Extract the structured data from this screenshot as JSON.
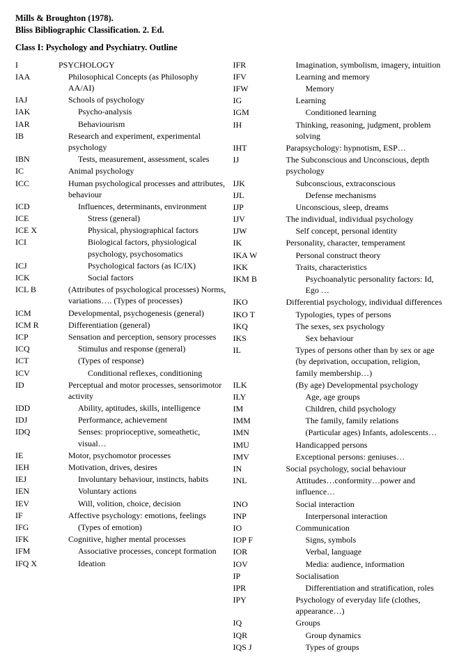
{
  "header": {
    "line1": "Mills & Broughton (1978).",
    "line2": "Bliss Bibliographic Classification. 2. Ed.",
    "class_title": "Class I: Psychology and Psychiatry. Outline"
  },
  "left": [
    {
      "code": "I",
      "desc": "PSYCHOLOGY",
      "indent": 0
    },
    {
      "code": "IAA",
      "desc": "Philosophical Concepts (as Philosophy AA/AI)",
      "indent": 1
    },
    {
      "code": "IAJ",
      "desc": "Schools of psychology",
      "indent": 1
    },
    {
      "code": "IAK",
      "desc": "Psycho-analysis",
      "indent": 2
    },
    {
      "code": "IAR",
      "desc": "Behaviourism",
      "indent": 2
    },
    {
      "code": "IB",
      "desc": "Research and experiment, experimental psychology",
      "indent": 1
    },
    {
      "code": "IBN",
      "desc": "Tests, measurement, assessment, scales",
      "indent": 2
    },
    {
      "code": "IC",
      "desc": "Animal psychology",
      "indent": 1
    },
    {
      "code": "ICC",
      "desc": "Human psychological processes and attributes, behaviour",
      "indent": 1
    },
    {
      "code": "ICD",
      "desc": "Influences, determinants, environment",
      "indent": 2
    },
    {
      "code": "ICE",
      "desc": "Stress (general)",
      "indent": 3
    },
    {
      "code": "ICE X",
      "desc": "Physical, physiographical factors",
      "indent": 3
    },
    {
      "code": "ICI",
      "desc": "Biological factors, physiological psychology, psychosomatics",
      "indent": 3
    },
    {
      "code": "ICJ",
      "desc": "Psychological factors (as IC/IX)",
      "indent": 3
    },
    {
      "code": "ICK",
      "desc": "Social factors",
      "indent": 3
    },
    {
      "code": "ICL B",
      "desc": "(Attributes of psychological processes) Norms, variations…. (Types of processes)",
      "indent": 1
    },
    {
      "code": "ICM",
      "desc": "Developmental, psychogenesis (general)",
      "indent": 1
    },
    {
      "code": "ICM R",
      "desc": "Differentiation (general)",
      "indent": 1
    },
    {
      "code": "ICP",
      "desc": "Sensation and perception, sensory processes",
      "indent": 1
    },
    {
      "code": "ICQ",
      "desc": "Stimulus and response (general)",
      "indent": 2
    },
    {
      "code": "ICT",
      "desc": "(Types of response)",
      "indent": 2
    },
    {
      "code": "ICV",
      "desc": "Conditional reflexes, conditioning",
      "indent": 3
    },
    {
      "code": "ID",
      "desc": "Perceptual and motor processes, sensorimotor activity",
      "indent": 1
    },
    {
      "code": "IDD",
      "desc": "Ability, aptitudes, skills, intelligence",
      "indent": 2
    },
    {
      "code": "IDJ",
      "desc": "Performance, achievement",
      "indent": 2
    },
    {
      "code": "IDQ",
      "desc": "Senses: proprioceptive, someathetic, visual…",
      "indent": 2
    },
    {
      "code": "IE",
      "desc": "Motor, psychomotor processes",
      "indent": 1
    },
    {
      "code": "IEH",
      "desc": "Motivation, drives, desires",
      "indent": 1
    },
    {
      "code": "IEJ",
      "desc": "Involuntary behaviour, instincts, habits",
      "indent": 2
    },
    {
      "code": "IEN",
      "desc": "Voluntary actions",
      "indent": 2
    },
    {
      "code": "IEV",
      "desc": "Will, volition, choice, decision",
      "indent": 2
    },
    {
      "code": "IF",
      "desc": "Affective psychology: emotions, feelings",
      "indent": 1
    },
    {
      "code": "IFG",
      "desc": "(Types of emotion)",
      "indent": 2
    },
    {
      "code": "IFK",
      "desc": "Cognitive, higher mental processes",
      "indent": 1
    },
    {
      "code": "IFM",
      "desc": "Associative processes, concept formation",
      "indent": 2
    },
    {
      "code": "IFQ X",
      "desc": "Ideation",
      "indent": 2
    }
  ],
  "right": [
    {
      "code": "IFR",
      "desc": "Imagination, symbolism, imagery, intuition",
      "indent": 2
    },
    {
      "code": "IFV",
      "desc": "Learning and memory",
      "indent": 2
    },
    {
      "code": "IFW",
      "desc": "Memory",
      "indent": 3
    },
    {
      "code": "IG",
      "desc": "Learning",
      "indent": 2
    },
    {
      "code": "IGM",
      "desc": "Conditioned learning",
      "indent": 3
    },
    {
      "code": "IH",
      "desc": "Thinking, reasoning, judgment, problem solving",
      "indent": 2
    },
    {
      "code": "IHT",
      "desc": "Parapsychology: hypnotism, ESP…",
      "indent": 1
    },
    {
      "code": "IJ",
      "desc": "The Subconscious and Unconscious, depth psychology",
      "indent": 1
    },
    {
      "code": "IJK",
      "desc": "Subconscious, extraconscious",
      "indent": 2
    },
    {
      "code": "IJL",
      "desc": "Defense mechanisms",
      "indent": 3
    },
    {
      "code": "IJP",
      "desc": "Unconscious, sleep, dreams",
      "indent": 2
    },
    {
      "code": "IJV",
      "desc": "The individual, individual psychology",
      "indent": 1
    },
    {
      "code": "IJW",
      "desc": "Self concept, personal identity",
      "indent": 2
    },
    {
      "code": "IK",
      "desc": "Personality, character, temperament",
      "indent": 1
    },
    {
      "code": "IKA W",
      "desc": "Personal construct theory",
      "indent": 2
    },
    {
      "code": "IKK",
      "desc": "Traits, characteristics",
      "indent": 2
    },
    {
      "code": "IKM B",
      "desc": "Psychoanalytic personality factors: Id, Ego …",
      "indent": 3
    },
    {
      "code": "IKO",
      "desc": "Differential psychology, individual differences",
      "indent": 1
    },
    {
      "code": "IKO T",
      "desc": "Typologies, types of persons",
      "indent": 2
    },
    {
      "code": "IKQ",
      "desc": "The sexes, sex psychology",
      "indent": 2
    },
    {
      "code": "IKS",
      "desc": "Sex behaviour",
      "indent": 3
    },
    {
      "code": "IL",
      "desc": "Types of persons other than by sex or age (by deprivation, occupation, religion, family membership…)",
      "indent": 2
    },
    {
      "code": "ILK",
      "desc": "(By age) Developmental psychology",
      "indent": 2
    },
    {
      "code": "ILY",
      "desc": "Age, age groups",
      "indent": 3
    },
    {
      "code": "IM",
      "desc": "Children, child psychology",
      "indent": 3
    },
    {
      "code": "IMM",
      "desc": "The family, family relations",
      "indent": 3
    },
    {
      "code": "IMN",
      "desc": "(Particular ages) Infants, adolescents…",
      "indent": 3
    },
    {
      "code": "IMU",
      "desc": "Handicapped persons",
      "indent": 2
    },
    {
      "code": "IMV",
      "desc": "Exceptional persons: geniuses…",
      "indent": 2
    },
    {
      "code": "IN",
      "desc": "Social psychology, social behaviour",
      "indent": 1
    },
    {
      "code": "INL",
      "desc": "Attitudes…conformity…power and influence…",
      "indent": 2
    },
    {
      "code": "INO",
      "desc": "Social interaction",
      "indent": 2
    },
    {
      "code": "INP",
      "desc": "Interpersonal interaction",
      "indent": 3
    },
    {
      "code": "IO",
      "desc": "Communication",
      "indent": 2
    },
    {
      "code": "IOP F",
      "desc": "Signs, symbols",
      "indent": 3
    },
    {
      "code": "IOR",
      "desc": "Verbal, language",
      "indent": 3
    },
    {
      "code": "IOV",
      "desc": "Media: audience, information",
      "indent": 3
    },
    {
      "code": "IP",
      "desc": "Socialisation",
      "indent": 2
    },
    {
      "code": "IPR",
      "desc": "Differentiation and stratification, roles",
      "indent": 3
    },
    {
      "code": "IPY",
      "desc": "Psychology of everyday life (clothes, appearance…)",
      "indent": 2
    },
    {
      "code": "IQ",
      "desc": "Groups",
      "indent": 2
    },
    {
      "code": "IQR",
      "desc": "Group dynamics",
      "indent": 3
    },
    {
      "code": "IQS J",
      "desc": "Types of groups",
      "indent": 3
    }
  ]
}
